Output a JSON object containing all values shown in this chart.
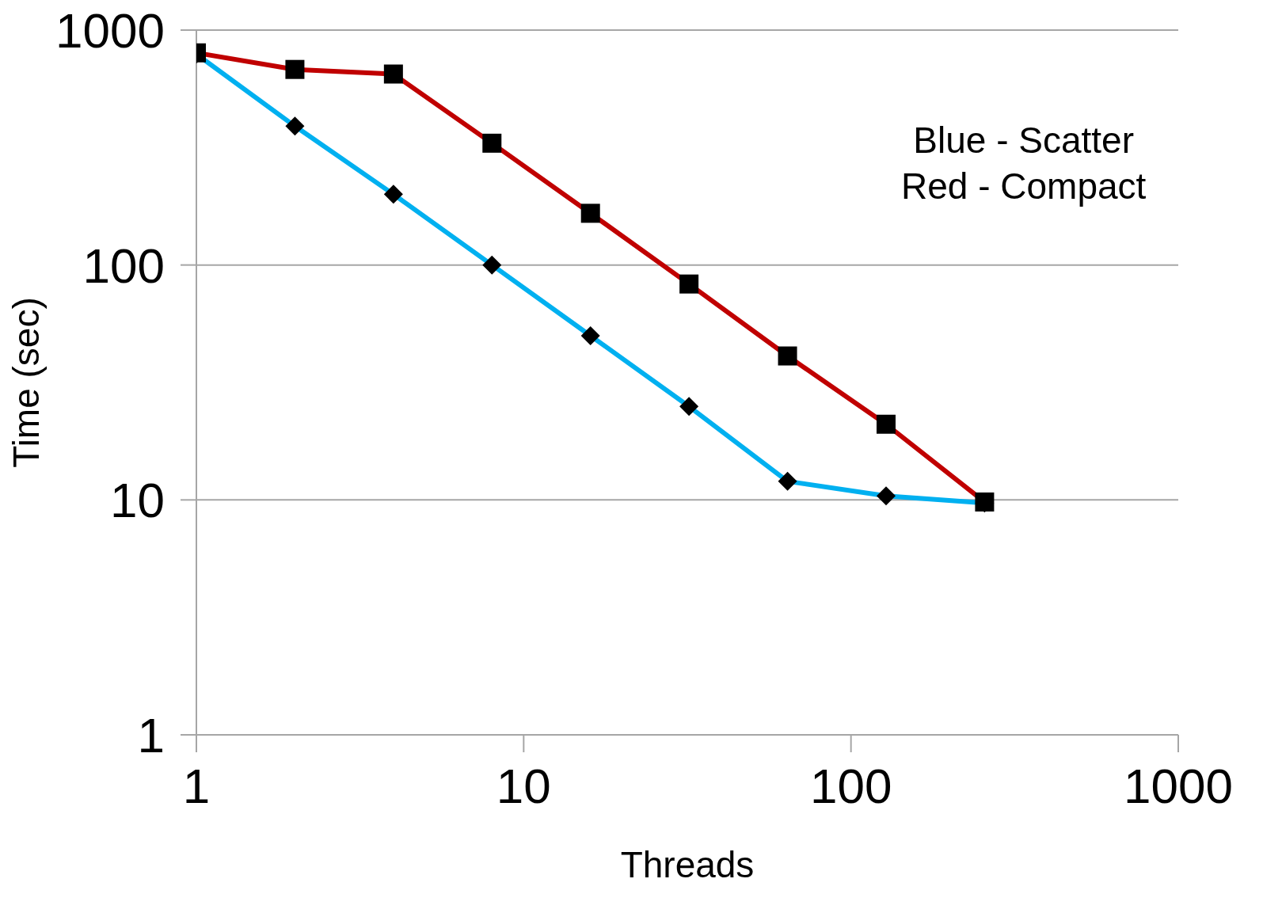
{
  "chart_data": {
    "type": "line",
    "xlabel": "Threads",
    "ylabel": "Time (sec)",
    "x": [
      1,
      2,
      4,
      8,
      16,
      32,
      64,
      128,
      256
    ],
    "series": [
      {
        "color": "#00b0f0",
        "marker": "diamond",
        "values": [
          790,
          390,
          200,
          100,
          50,
          25,
          12,
          10.4,
          9.7
        ]
      },
      {
        "color": "#c00000",
        "marker": "square",
        "values": [
          800,
          680,
          650,
          330,
          166,
          83,
          41,
          21,
          9.8
        ]
      }
    ],
    "xlim": [
      1,
      1000
    ],
    "xticks": [
      1,
      10,
      100,
      1000
    ],
    "ylim": [
      1,
      1000
    ],
    "yticks": [
      1,
      10,
      100,
      1000
    ],
    "log": "xy",
    "grid": "y",
    "line_style": "solid",
    "annotations": [
      "Blue - Scatter",
      "Red - Compact"
    ]
  }
}
